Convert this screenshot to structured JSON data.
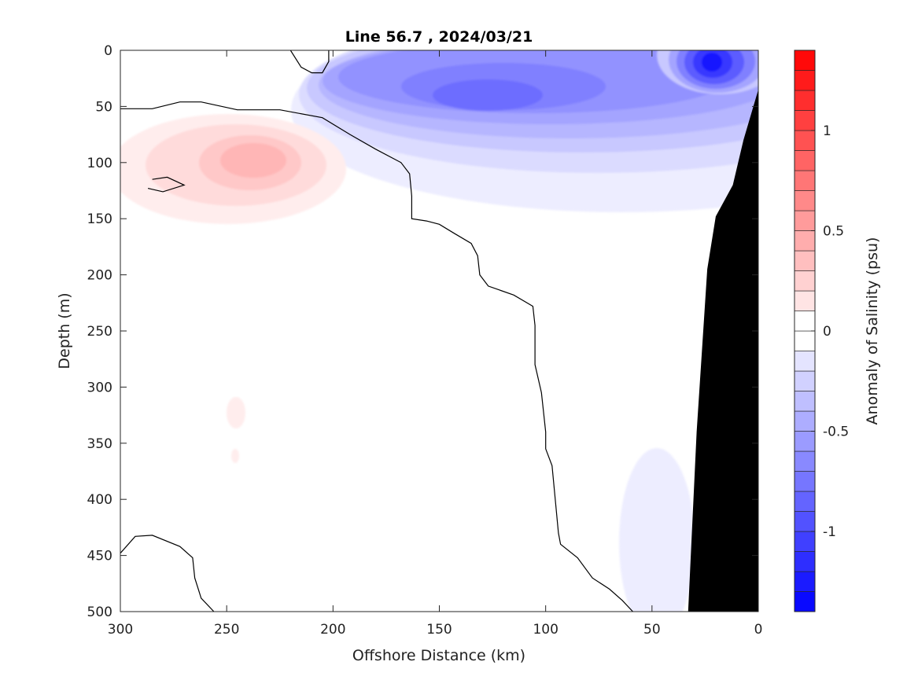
{
  "chart_data": {
    "type": "heatmap",
    "title": "Line 56.7 , 2024/03/21",
    "xlabel": "Offshore Distance (km)",
    "ylabel": "Depth (m)",
    "xlim": [
      300,
      0
    ],
    "ylim": [
      0,
      500
    ],
    "x_reversed": true,
    "y_reversed": true,
    "x_ticks": [
      300,
      250,
      200,
      150,
      100,
      50,
      0
    ],
    "y_ticks": [
      0,
      50,
      100,
      150,
      200,
      250,
      300,
      350,
      400,
      450,
      500
    ],
    "colorbar": {
      "label": "Anomaly of Salinity (psu)",
      "range": [
        -1.4,
        1.4
      ],
      "step": 0.1,
      "ticks": [
        1,
        0.5,
        0,
        -0.5,
        -1
      ],
      "tick_labels": [
        "1",
        "0.5",
        "0",
        "-0.5",
        "-1"
      ],
      "positive_color": "#ff0000",
      "negative_color": "#0000ff",
      "zero_color": "#ffffff"
    },
    "zero_contour": [
      [
        [
          300,
          52
        ],
        [
          285,
          52
        ],
        [
          272,
          46
        ],
        [
          262,
          46
        ],
        [
          245,
          53
        ],
        [
          225,
          53
        ],
        [
          205,
          60
        ],
        [
          192,
          75
        ],
        [
          180,
          88
        ],
        [
          168,
          100
        ],
        [
          164,
          110
        ],
        [
          163,
          130
        ],
        [
          163,
          150
        ],
        [
          156,
          152
        ],
        [
          150,
          155
        ],
        [
          143,
          163
        ],
        [
          135,
          172
        ],
        [
          132,
          183
        ],
        [
          131,
          200
        ],
        [
          127,
          210
        ],
        [
          115,
          218
        ],
        [
          106,
          228
        ],
        [
          105,
          245
        ],
        [
          105,
          280
        ],
        [
          102,
          305
        ],
        [
          100,
          340
        ],
        [
          100,
          355
        ],
        [
          97,
          370
        ],
        [
          96,
          390
        ],
        [
          94,
          430
        ],
        [
          93,
          440
        ],
        [
          85,
          452
        ],
        [
          78,
          470
        ],
        [
          70,
          480
        ],
        [
          64,
          490
        ],
        [
          59,
          500
        ]
      ],
      [
        [
          300,
          448
        ],
        [
          293,
          433
        ],
        [
          285,
          432
        ],
        [
          272,
          442
        ],
        [
          266,
          452
        ],
        [
          265,
          470
        ],
        [
          262,
          488
        ],
        [
          256,
          500
        ]
      ],
      [
        [
          220,
          0
        ],
        [
          215,
          15
        ],
        [
          210,
          20
        ],
        [
          205,
          20
        ],
        [
          202,
          10
        ],
        [
          202,
          0
        ]
      ],
      [
        [
          285,
          115
        ],
        [
          278,
          113
        ],
        [
          270,
          120
        ],
        [
          280,
          126
        ],
        [
          287,
          123
        ]
      ]
    ],
    "anomalies": [
      {
        "region": "surface low-salinity core",
        "x": 20,
        "depth": 10,
        "value": -1.3
      },
      {
        "region": "subsurface low-salinity tongue",
        "x": 125,
        "depth": 45,
        "value": -0.8
      },
      {
        "region": "offshore high-salinity lens",
        "x": 235,
        "depth": 98,
        "value": 0.4
      },
      {
        "region": "deep high-salinity patch",
        "x": 245,
        "depth": 325,
        "value": 0.1
      },
      {
        "region": "deep nearshore low-salinity patch",
        "x": 50,
        "depth": 450,
        "value": -0.1
      }
    ],
    "bathymetry": [
      [
        0,
        35
      ],
      [
        7,
        80
      ],
      [
        12,
        120
      ],
      [
        20,
        148
      ],
      [
        24,
        195
      ],
      [
        29,
        340
      ],
      [
        33,
        500
      ],
      [
        0,
        500
      ]
    ],
    "grid": false,
    "legend": "colorbar-right"
  }
}
